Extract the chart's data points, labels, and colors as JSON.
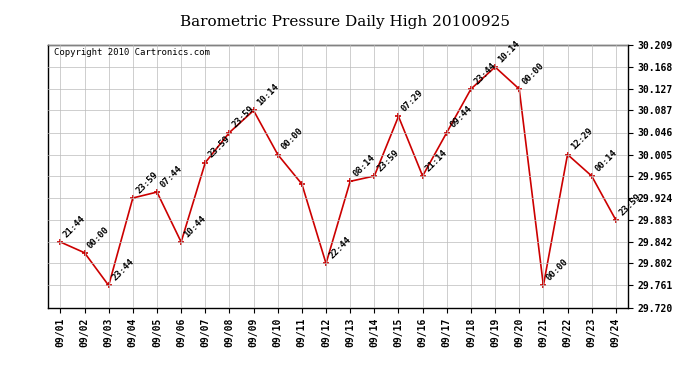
{
  "title": "Barometric Pressure Daily High 20100925",
  "copyright": "Copyright 2010 Cartronics.com",
  "x_labels": [
    "09/01",
    "09/02",
    "09/03",
    "09/04",
    "09/05",
    "09/06",
    "09/07",
    "09/08",
    "09/09",
    "09/10",
    "09/11",
    "09/12",
    "09/13",
    "09/14",
    "09/15",
    "09/16",
    "09/17",
    "09/18",
    "09/19",
    "09/20",
    "09/21",
    "09/22",
    "09/23",
    "09/24"
  ],
  "y_values": [
    29.842,
    29.822,
    29.761,
    29.924,
    29.935,
    29.842,
    29.99,
    30.046,
    30.087,
    30.005,
    29.95,
    29.802,
    29.955,
    29.965,
    30.076,
    29.965,
    30.046,
    30.127,
    30.168,
    30.127,
    29.761,
    30.005,
    29.965,
    29.883
  ],
  "point_labels": [
    "21:44",
    "00:00",
    "23:44",
    "23:59",
    "07:44",
    "10:44",
    "23:59",
    "23:59",
    "10:14",
    "00:00",
    "",
    "22:44",
    "08:14",
    "23:59",
    "07:29",
    "21:14",
    "09:44",
    "23:44",
    "10:14",
    "00:00",
    "00:00",
    "12:29",
    "00:14",
    "23:59"
  ],
  "ylim_min": 29.72,
  "ylim_max": 30.209,
  "yticks": [
    29.72,
    29.761,
    29.802,
    29.842,
    29.883,
    29.924,
    29.965,
    30.005,
    30.046,
    30.087,
    30.127,
    30.168,
    30.209
  ],
  "line_color": "#cc0000",
  "marker_color": "#cc0000",
  "bg_color": "#ffffff",
  "grid_color": "#bbbbbb",
  "title_fontsize": 11,
  "tick_fontsize": 7,
  "copyright_fontsize": 6.5,
  "annot_fontsize": 6.5
}
